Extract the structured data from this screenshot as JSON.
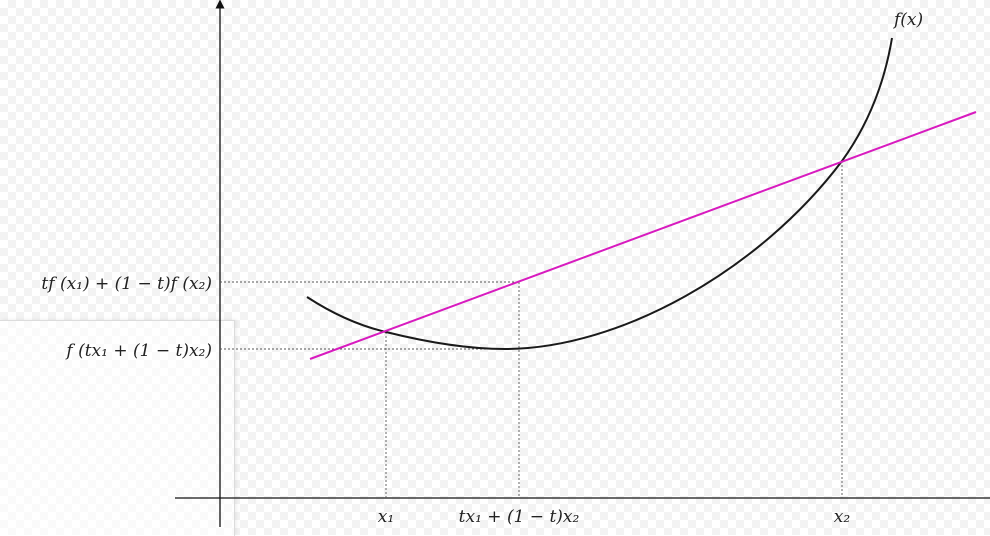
{
  "curve": {
    "label": "f(x)",
    "color": "#1a1a1a"
  },
  "chord": {
    "color": "#d81bbf"
  },
  "labels": {
    "y_chord": "tf (x₁) + (1 − t)f (x₂)",
    "y_curve": "f (tx₁ + (1 − t)x₂)",
    "x1": "x₁",
    "x_mid": "tx₁ + (1 − t)x₂",
    "x2": "x₂"
  },
  "style": {
    "axis_color": "#111111",
    "guide_color": "#555555"
  }
}
